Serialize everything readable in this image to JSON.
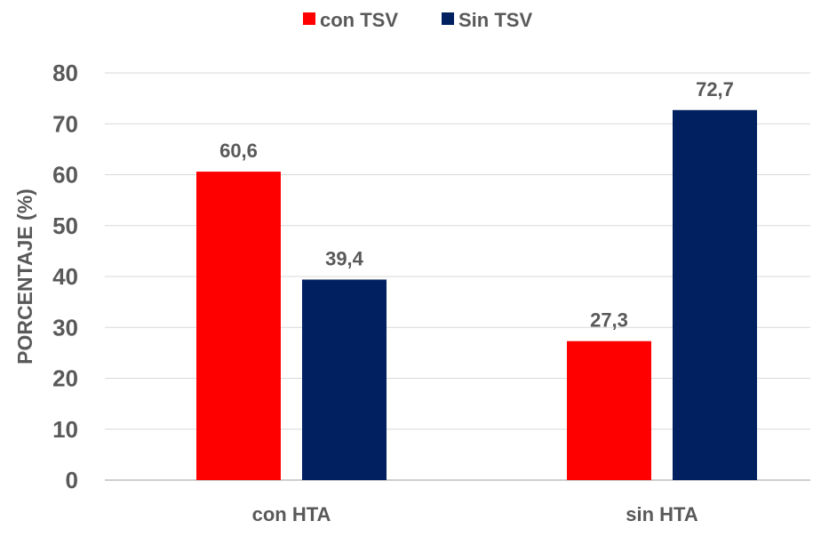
{
  "chart_data": {
    "type": "bar",
    "title": "",
    "xlabel": "",
    "ylabel": "PORCENTAJE (%)",
    "categories": [
      "con HTA",
      "sin HTA"
    ],
    "series": [
      {
        "name": "con TSV",
        "color": "#ff0000",
        "values": [
          60.6,
          27.3
        ],
        "labels": [
          "60,6",
          "27,3"
        ]
      },
      {
        "name": "Sin TSV",
        "color": "#002060",
        "values": [
          39.4,
          72.7
        ],
        "labels": [
          "39,4",
          "72,7"
        ]
      }
    ],
    "ylim": [
      0,
      80
    ],
    "yticks": [
      0,
      10,
      20,
      30,
      40,
      50,
      60,
      70,
      80
    ],
    "grid": true,
    "legend": "top-center"
  }
}
